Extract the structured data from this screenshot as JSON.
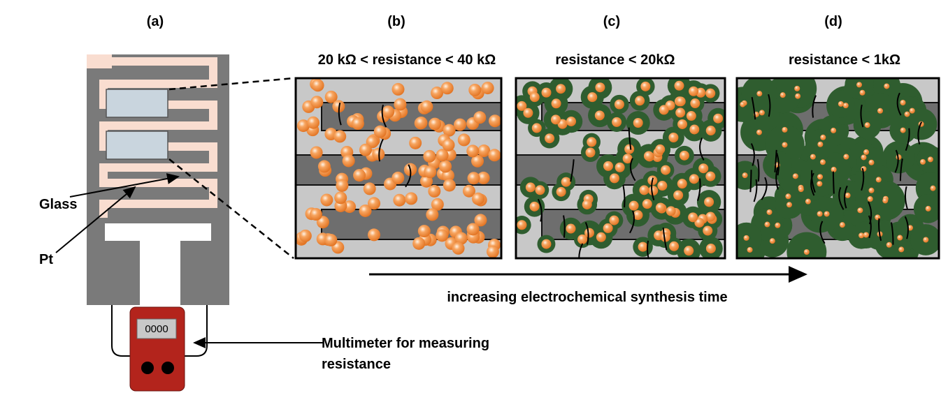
{
  "panels": [
    {
      "label": "(a)"
    },
    {
      "label": "(b)",
      "caption": "20 kΩ < resistance < 40 kΩ"
    },
    {
      "label": "(c)",
      "caption": "resistance < 20kΩ"
    },
    {
      "label": "(d)",
      "caption": "resistance < 1kΩ"
    }
  ],
  "labels": {
    "glass": "Glass",
    "pt": "Pt"
  },
  "multimeter": {
    "display": "0000",
    "caption": [
      "Multimeter for measuring",
      "resistance"
    ]
  },
  "arrow_label": "increasing electrochemical synthesis time"
}
